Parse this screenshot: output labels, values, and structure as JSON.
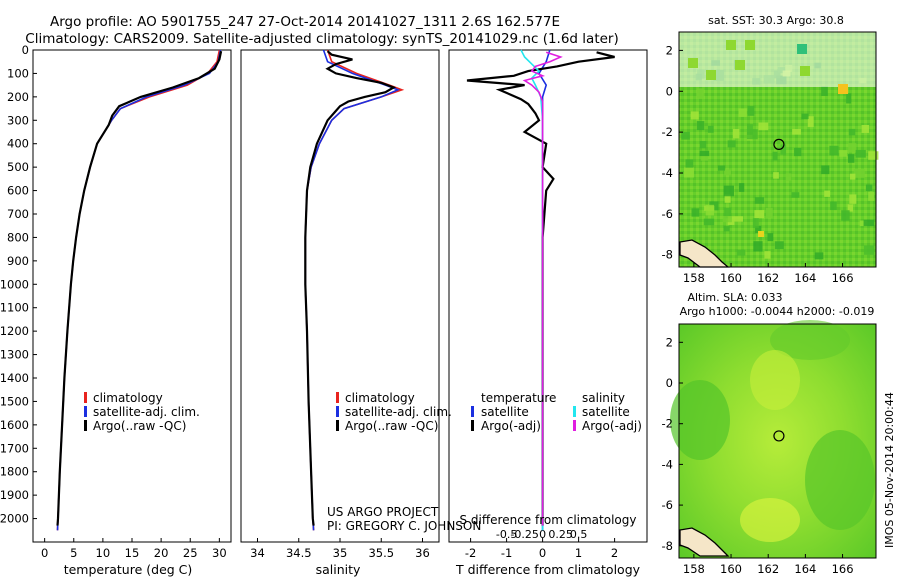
{
  "title_line1": "Argo profile: AO 5901755_247 27-Oct-2014 20141027_1311 2.6S 162.577E",
  "title_line2": "Climatology: CARS2009. Satellite-adjusted climatology: synTS_20141029.nc (1.6d later)",
  "project_line1": "US ARGO PROJECT",
  "project_line2": "PI: GREGORY C. JOHNSON",
  "timestamp": "IMOS 05-Nov-2014 20:00:44",
  "colors": {
    "climatology": "#e8231e",
    "satellite": "#1b2fe0",
    "argo": "#000000",
    "cyan": "#22e6ee",
    "magenta": "#e01ee0"
  },
  "chart_data": [
    {
      "type": "line",
      "xlabel": "temperature (deg C)",
      "ylim": [
        2100,
        0
      ],
      "xlim": [
        -2,
        32
      ],
      "xticks": [
        "0",
        "5",
        "10",
        "15",
        "20",
        "25",
        "30"
      ],
      "yticks": [
        "0",
        "100",
        "200",
        "300",
        "400",
        "500",
        "600",
        "700",
        "800",
        "900",
        "1000",
        "1100",
        "1200",
        "1300",
        "1400",
        "1500",
        "1600",
        "1700",
        "1800",
        "1900",
        "2000"
      ],
      "legend": [
        "climatology",
        "satellite-adj. clim.",
        "Argo(..raw -QC)"
      ],
      "series": [
        {
          "name": "climatology",
          "color": "climatology",
          "depth": [
            0,
            50,
            100,
            150,
            200,
            250,
            300,
            400,
            500,
            600,
            700,
            800,
            900,
            1000,
            1200,
            1400,
            1600,
            1800,
            2000,
            2050
          ],
          "values": [
            30.0,
            29.6,
            28.0,
            24.5,
            18.0,
            13.0,
            11.5,
            9.0,
            7.8,
            6.8,
            6.0,
            5.4,
            4.9,
            4.5,
            3.9,
            3.4,
            3.0,
            2.6,
            2.3,
            2.2
          ]
        },
        {
          "name": "satellite-adj. clim.",
          "color": "satellite",
          "depth": [
            0,
            50,
            100,
            150,
            200,
            250,
            300,
            400,
            500,
            600,
            700,
            800,
            900,
            1000,
            1200,
            1400,
            1600,
            1800,
            2000,
            2050
          ],
          "values": [
            30.2,
            29.8,
            28.3,
            24.0,
            17.5,
            13.0,
            11.5,
            9.0,
            7.8,
            6.8,
            6.0,
            5.4,
            4.9,
            4.5,
            3.9,
            3.4,
            3.0,
            2.6,
            2.3,
            2.2
          ]
        },
        {
          "name": "Argo(..raw -QC)",
          "color": "argo",
          "depth": [
            5,
            40,
            80,
            120,
            160,
            200,
            240,
            280,
            320,
            400,
            500,
            600,
            700,
            800,
            900,
            1000,
            1200,
            1400,
            1600,
            1800,
            2000,
            2030
          ],
          "values": [
            30.3,
            30.0,
            29.2,
            26.5,
            22.0,
            16.5,
            12.8,
            11.6,
            11.0,
            9.0,
            7.8,
            6.8,
            6.0,
            5.4,
            4.9,
            4.5,
            3.9,
            3.4,
            3.0,
            2.6,
            2.3,
            2.2
          ]
        }
      ]
    },
    {
      "type": "line",
      "xlabel": "salinity",
      "ylim": [
        2100,
        0
      ],
      "xlim": [
        33.8,
        36.2
      ],
      "xticks": [
        "34",
        "34.5",
        "35",
        "35.5",
        "36"
      ],
      "legend": [
        "climatology",
        "satellite-adj. clim.",
        "Argo(..raw -QC)"
      ],
      "series": [
        {
          "name": "climatology",
          "color": "climatology",
          "depth": [
            0,
            50,
            100,
            150,
            170,
            200,
            250,
            300,
            400,
            500,
            600,
            800,
            1000,
            1200,
            1500,
            1800,
            2000,
            2050
          ],
          "values": [
            34.85,
            34.9,
            35.2,
            35.6,
            35.75,
            35.5,
            35.05,
            34.9,
            34.75,
            34.65,
            34.6,
            34.58,
            34.58,
            34.6,
            34.62,
            34.65,
            34.67,
            34.68
          ]
        },
        {
          "name": "satellite-adj. clim.",
          "color": "satellite",
          "depth": [
            0,
            50,
            100,
            150,
            170,
            200,
            250,
            300,
            400,
            500,
            600,
            800,
            1000,
            1200,
            1500,
            1800,
            2000,
            2050
          ],
          "values": [
            34.8,
            34.85,
            35.15,
            35.55,
            35.7,
            35.5,
            35.05,
            34.9,
            34.75,
            34.65,
            34.6,
            34.58,
            34.58,
            34.6,
            34.62,
            34.65,
            34.67,
            34.68
          ]
        },
        {
          "name": "Argo(..raw -QC)",
          "color": "argo",
          "depth": [
            5,
            20,
            40,
            60,
            80,
            100,
            120,
            140,
            160,
            180,
            200,
            220,
            240,
            260,
            300,
            400,
            500,
            600,
            800,
            1000,
            1200,
            1500,
            1800,
            2000,
            2030
          ],
          "values": [
            34.85,
            34.9,
            35.15,
            34.95,
            34.85,
            34.95,
            35.2,
            35.5,
            35.65,
            35.55,
            35.3,
            35.1,
            35.0,
            34.95,
            34.85,
            34.72,
            34.64,
            34.6,
            34.58,
            34.58,
            34.6,
            34.62,
            34.65,
            34.67,
            34.68
          ]
        }
      ]
    },
    {
      "type": "line",
      "xlabel": "T difference from climatology",
      "xlabel_top": "S difference from climatology",
      "ylim": [
        2100,
        0
      ],
      "xlim": [
        -2.6,
        2.9
      ],
      "xticks": [
        "-2",
        "-1",
        "0",
        "1",
        "2"
      ],
      "xticks_top": [
        "-0.5",
        "-0.25",
        "0",
        "0.25",
        "0.5"
      ],
      "legend_temperature": "temperature",
      "legend_salinity": "salinity",
      "legend_items": [
        "satellite",
        "Argo(-adj)",
        "satellite",
        "Argo(-adj)"
      ],
      "series": [
        {
          "name": "satellite",
          "color": "satellite",
          "depth": [
            0,
            50,
            100,
            150,
            200,
            300,
            400,
            600,
            800,
            1000,
            1500,
            2050
          ],
          "values": [
            0.2,
            0.1,
            -0.1,
            0.1,
            0.0,
            0.0,
            0.0,
            0.0,
            0.0,
            0.0,
            0.0,
            0.0
          ]
        },
        {
          "name": "Argo(-adj)",
          "color": "argo",
          "depth": [
            10,
            30,
            50,
            70,
            90,
            110,
            130,
            150,
            170,
            190,
            210,
            230,
            250,
            270,
            300,
            350,
            400,
            500,
            550,
            600,
            800,
            1000,
            1500,
            2030
          ],
          "values": [
            1.5,
            2.0,
            1.0,
            0.4,
            -0.4,
            -0.8,
            -2.1,
            -0.5,
            -1.2,
            -0.9,
            -0.6,
            -0.4,
            -0.3,
            -0.2,
            -0.1,
            -0.5,
            0.1,
            0.0,
            0.3,
            0.1,
            0.0,
            0.0,
            0.0,
            0.0
          ]
        },
        {
          "name": "satellite (salinity)",
          "color": "cyan",
          "depth": [
            0,
            30,
            60,
            90,
            120,
            150,
            200,
            300,
            500,
            800,
            1200,
            1600,
            2050
          ],
          "values": [
            -0.6,
            -0.5,
            -0.3,
            -0.1,
            -0.3,
            -0.2,
            -0.05,
            0.0,
            0.0,
            0.0,
            0.0,
            0.0,
            0.0
          ]
        },
        {
          "name": "Argo(-adj) (salinity)",
          "color": "magenta",
          "depth": [
            10,
            30,
            50,
            70,
            90,
            110,
            130,
            150,
            180,
            220,
            300,
            500,
            800,
            1200,
            2030
          ],
          "values": [
            0.1,
            0.5,
            0.2,
            -0.2,
            -0.3,
            0.0,
            -0.5,
            -0.3,
            -0.1,
            0.0,
            0.0,
            0.0,
            0.0,
            0.0,
            0.0
          ]
        }
      ]
    },
    {
      "type": "heatmap",
      "title": "sat. SST: 30.3 Argo: 30.8",
      "xticks": [
        "158",
        "160",
        "162",
        "164",
        "166"
      ],
      "yticks": [
        "2",
        "0",
        "-2",
        "-4",
        "-6",
        "-8"
      ],
      "marker": {
        "lon": 162.577,
        "lat": -2.6
      }
    },
    {
      "type": "heatmap",
      "title_line1": "Altim. SLA: 0.033",
      "title_line2": "Argo h1000: -0.0044 h2000: -0.019",
      "xticks": [
        "158",
        "160",
        "162",
        "164",
        "166"
      ],
      "yticks": [
        "2",
        "0",
        "-2",
        "-4",
        "-6",
        "-8"
      ],
      "marker": {
        "lon": 162.577,
        "lat": -2.6
      }
    }
  ]
}
